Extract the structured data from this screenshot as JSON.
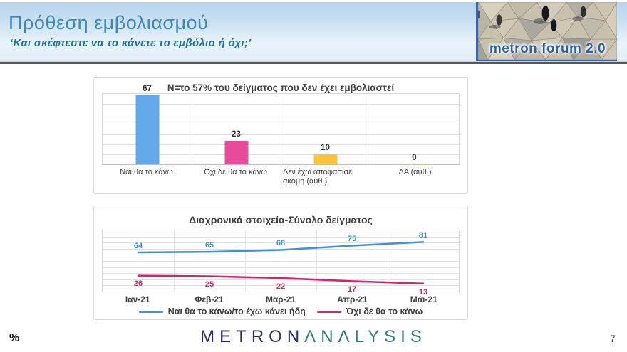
{
  "header": {
    "title": "Πρόθεση εμβολιασμού",
    "subtitle": "‘Και σκέφτεστε να το κάνετε το εμβόλιο ή όχι;’",
    "logo_text": "metron forum 2.0"
  },
  "chart_data": [
    {
      "type": "bar",
      "title": "N=το 57% του δείγματος που δεν έχει εμβολιαστεί",
      "categories": [
        "Ναι θα το κάνω",
        "Όχι δε θα το κάνω",
        "Δεν έχω αποφασίσει ακόμη (αυθ.)",
        "ΔΑ (αυθ.)"
      ],
      "values": [
        67,
        23,
        10,
        0
      ],
      "bar_colors": [
        "#63a9e9",
        "#e64c9a",
        "#f9c43f",
        "#b6cf8e"
      ],
      "ylim": [
        0,
        70
      ],
      "grid_step": 10,
      "grid": true,
      "value_labels": true,
      "xlabel": "",
      "ylabel": ""
    },
    {
      "type": "line",
      "title": "Διαχρονικά στοιχεία-Σύνολο δείγματος",
      "categories": [
        "Ιαν-21",
        "Φεβ-21",
        "Μαρ-21",
        "Απρ-21",
        "Μάι-21"
      ],
      "series": [
        {
          "name": "Ναι θα το κάνω/το έχω κάνει ήδη",
          "values": [
            64,
            65,
            68,
            75,
            81
          ],
          "color": "#3f90dd",
          "label_position": "above"
        },
        {
          "name": "Όχι δε θα το κάνω",
          "values": [
            26,
            25,
            22,
            17,
            13
          ],
          "color": "#dc2069",
          "label_position": "below"
        }
      ],
      "ylim": [
        0,
        100
      ],
      "grid_step": 10,
      "grid": true,
      "legend_position": "bottom",
      "xlabel": "",
      "ylabel": ""
    }
  ],
  "footer": {
    "unit_label": "%",
    "logo_metron": "METRON",
    "logo_analysis": "ΛΝΛLYSIS",
    "page_number": "7"
  }
}
